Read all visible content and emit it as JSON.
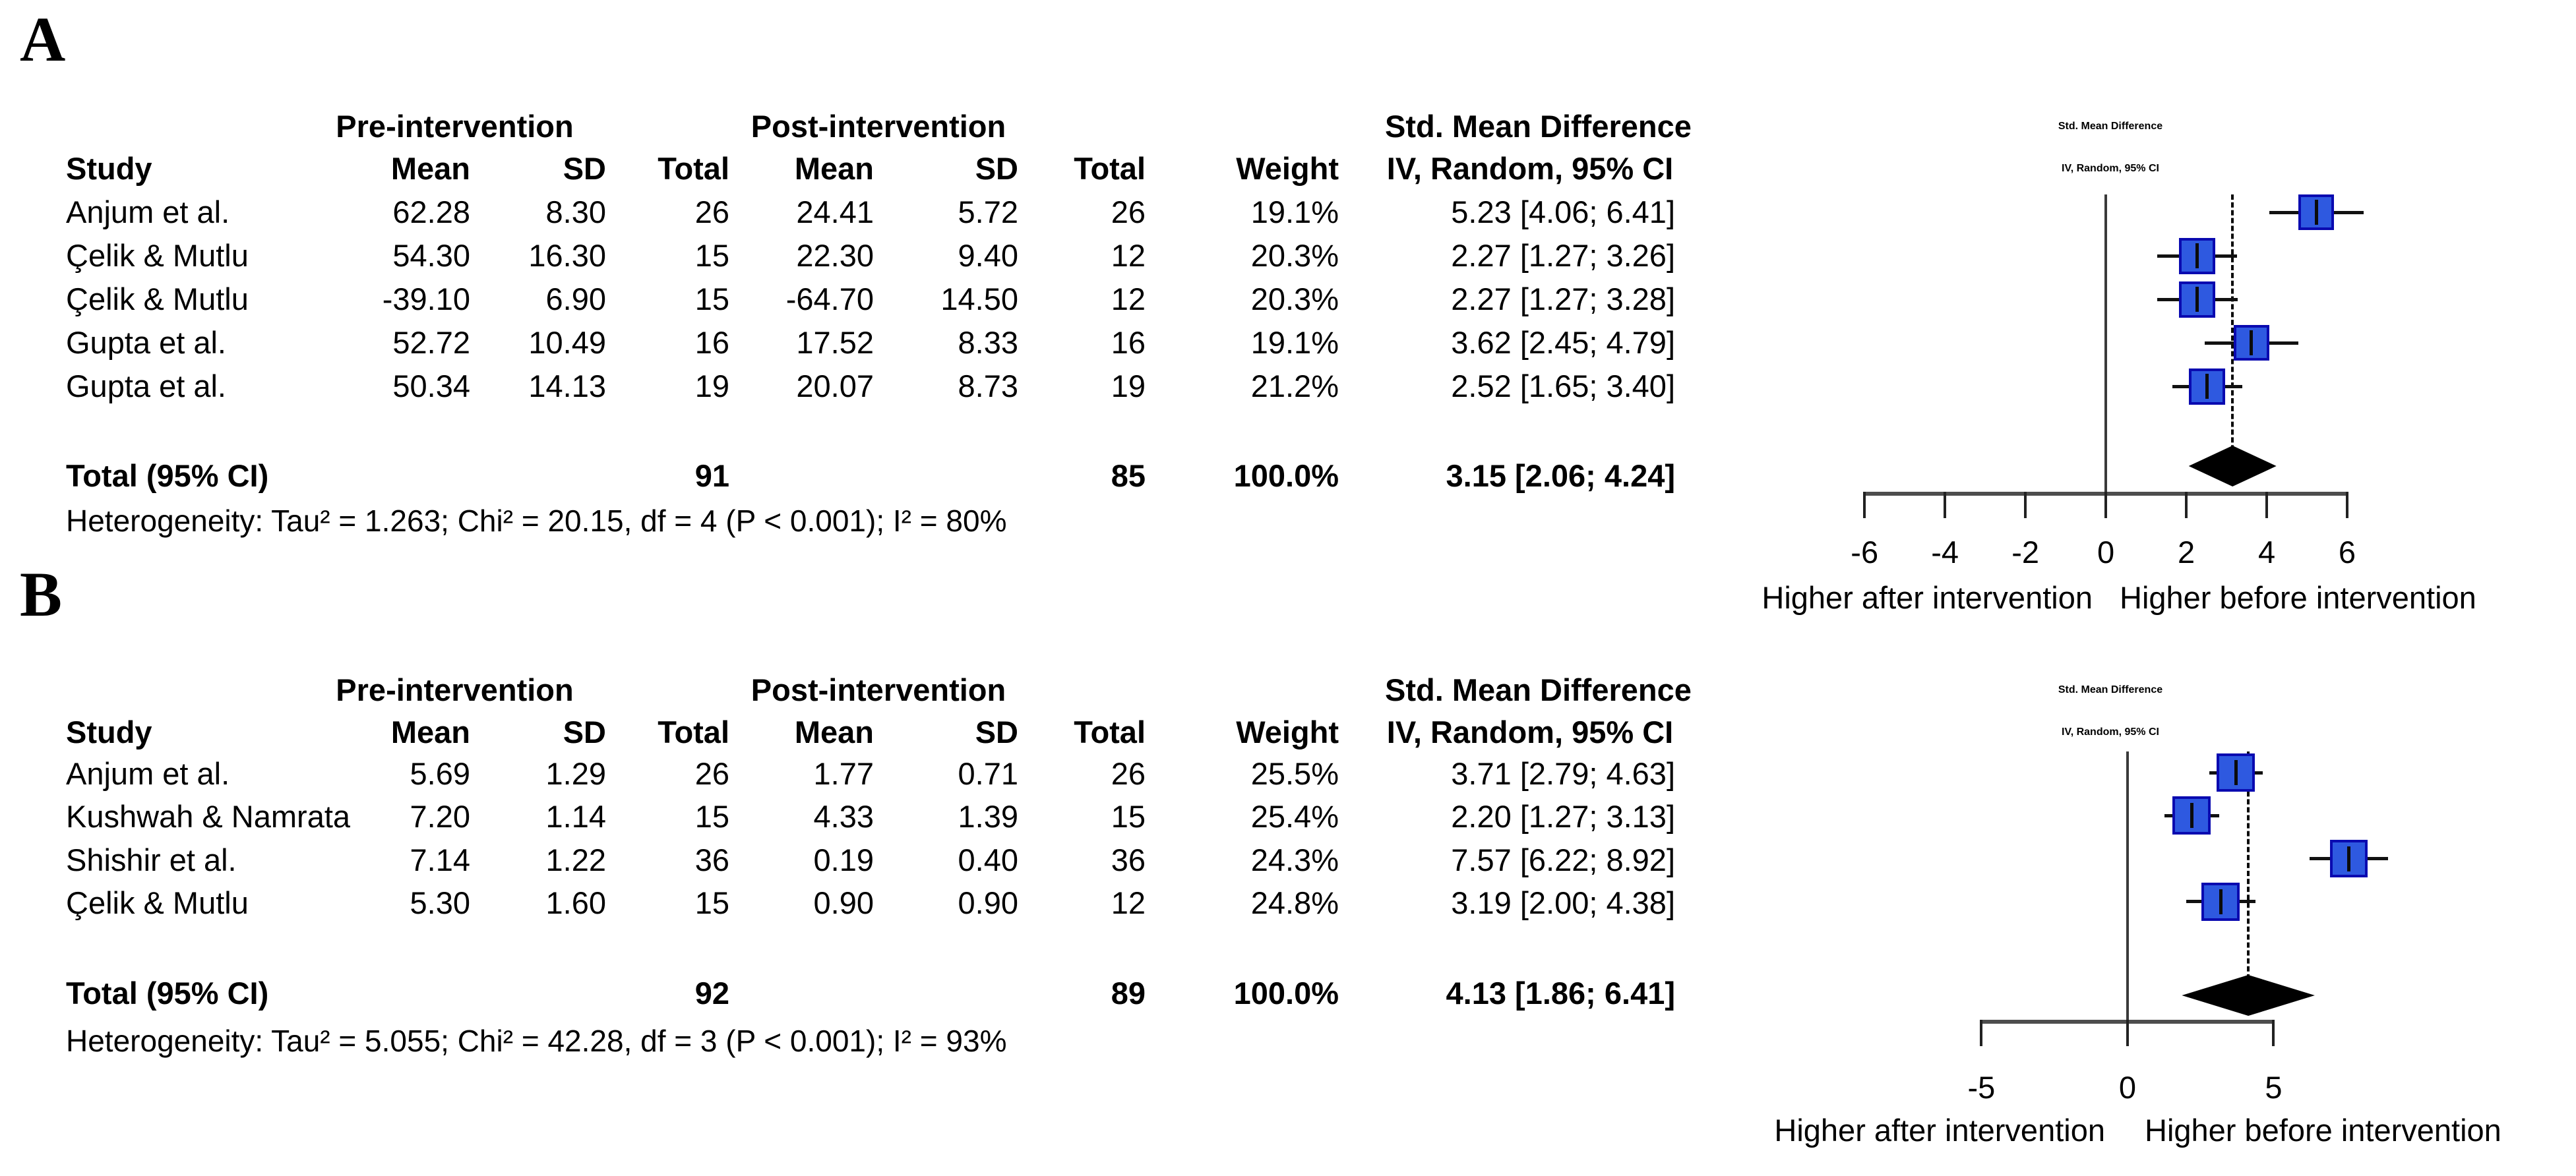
{
  "panels": [
    {
      "label": "A",
      "table": {
        "group_pre": "Pre-intervention",
        "group_post": "Post-intervention",
        "smd_header1": "Std. Mean Difference",
        "smd_header2": "IV, Random, 95% CI",
        "col_study": "Study",
        "col_mean": "Mean",
        "col_sd": "SD",
        "col_total": "Total",
        "col_weight": "Weight",
        "rows": [
          {
            "study": "Anjum et al.",
            "pre_mean": "62.28",
            "pre_sd": "8.30",
            "pre_total": "26",
            "post_mean": "24.41",
            "post_sd": "5.72",
            "post_total": "26",
            "weight": "19.1%",
            "smd": "5.23 [4.06; 6.41]"
          },
          {
            "study": "Çelik & Mutlu",
            "pre_mean": "54.30",
            "pre_sd": "16.30",
            "pre_total": "15",
            "post_mean": "22.30",
            "post_sd": "9.40",
            "post_total": "12",
            "weight": "20.3%",
            "smd": "2.27 [1.27; 3.26]"
          },
          {
            "study": "Çelik & Mutlu",
            "pre_mean": "-39.10",
            "pre_sd": "6.90",
            "pre_total": "15",
            "post_mean": "-64.70",
            "post_sd": "14.50",
            "post_total": "12",
            "weight": "20.3%",
            "smd": "2.27 [1.27; 3.28]"
          },
          {
            "study": "Gupta et al.",
            "pre_mean": "52.72",
            "pre_sd": "10.49",
            "pre_total": "16",
            "post_mean": "17.52",
            "post_sd": "8.33",
            "post_total": "16",
            "weight": "19.1%",
            "smd": "3.62 [2.45; 4.79]"
          },
          {
            "study": "Gupta et al.",
            "pre_mean": "50.34",
            "pre_sd": "14.13",
            "pre_total": "19",
            "post_mean": "20.07",
            "post_sd": "8.73",
            "post_total": "19",
            "weight": "21.2%",
            "smd": "2.52 [1.65; 3.40]"
          }
        ],
        "total": {
          "label": "Total (95% CI)",
          "pre_total": "91",
          "post_total": "85",
          "weight": "100.0%",
          "smd": "3.15 [2.06; 4.24]"
        },
        "heterogeneity": "Heterogeneity: Tau² = 1.263; Chi² = 20.15, df = 4 (P < 0.001); I² = 80%"
      },
      "plot_header1": "Std. Mean Difference",
      "plot_header2": "IV, Random, 95% CI",
      "note_left": "Higher after intervention",
      "note_right": "Higher before intervention"
    },
    {
      "label": "B",
      "table": {
        "group_pre": "Pre-intervention",
        "group_post": "Post-intervention",
        "smd_header1": "Std. Mean Difference",
        "smd_header2": "IV, Random, 95% CI",
        "col_study": "Study",
        "col_mean": "Mean",
        "col_sd": "SD",
        "col_total": "Total",
        "col_weight": "Weight",
        "rows": [
          {
            "study": "Anjum et al.",
            "pre_mean": "5.69",
            "pre_sd": "1.29",
            "pre_total": "26",
            "post_mean": "1.77",
            "post_sd": "0.71",
            "post_total": "26",
            "weight": "25.5%",
            "smd": "3.71 [2.79; 4.63]"
          },
          {
            "study": "Kushwah & Namrata",
            "pre_mean": "7.20",
            "pre_sd": "1.14",
            "pre_total": "15",
            "post_mean": "4.33",
            "post_sd": "1.39",
            "post_total": "15",
            "weight": "25.4%",
            "smd": "2.20 [1.27; 3.13]"
          },
          {
            "study": "Shishir et al.",
            "pre_mean": "7.14",
            "pre_sd": "1.22",
            "pre_total": "36",
            "post_mean": "0.19",
            "post_sd": "0.40",
            "post_total": "36",
            "weight": "24.3%",
            "smd": "7.57 [6.22; 8.92]"
          },
          {
            "study": "Çelik & Mutlu",
            "pre_mean": "5.30",
            "pre_sd": "1.60",
            "pre_total": "15",
            "post_mean": "0.90",
            "post_sd": "0.90",
            "post_total": "12",
            "weight": "24.8%",
            "smd": "3.19 [2.00; 4.38]"
          }
        ],
        "total": {
          "label": "Total (95% CI)",
          "pre_total": "92",
          "post_total": "89",
          "weight": "100.0%",
          "smd": "4.13 [1.86; 6.41]"
        },
        "heterogeneity": "Heterogeneity: Tau² = 5.055; Chi² = 42.28, df = 3 (P < 0.001); I² = 93%"
      },
      "plot_header1": "Std. Mean Difference",
      "plot_header2": "IV, Random, 95% CI",
      "note_left": "Higher after intervention",
      "note_right": "Higher before intervention"
    }
  ],
  "chart_data": [
    {
      "type": "forest",
      "panel": "A",
      "title": "Std. Mean Difference",
      "model": "IV, Random, 95% CI",
      "studies": [
        {
          "name": "Anjum et al.",
          "smd": 5.23,
          "ci_low": 4.06,
          "ci_high": 6.41,
          "weight_pct": 19.1
        },
        {
          "name": "Çelik & Mutlu",
          "smd": 2.27,
          "ci_low": 1.27,
          "ci_high": 3.26,
          "weight_pct": 20.3
        },
        {
          "name": "Çelik & Mutlu",
          "smd": 2.27,
          "ci_low": 1.27,
          "ci_high": 3.28,
          "weight_pct": 20.3
        },
        {
          "name": "Gupta et al.",
          "smd": 3.62,
          "ci_low": 2.45,
          "ci_high": 4.79,
          "weight_pct": 19.1
        },
        {
          "name": "Gupta et al.",
          "smd": 2.52,
          "ci_low": 1.65,
          "ci_high": 3.4,
          "weight_pct": 21.2
        }
      ],
      "total": {
        "smd": 3.15,
        "ci_low": 2.06,
        "ci_high": 4.24
      },
      "ticks": [
        -6,
        -4,
        -2,
        0,
        2,
        4,
        6
      ],
      "xlim": [
        -6.61,
        11.69
      ],
      "zero_reference": 0,
      "note_left": "Higher after intervention",
      "note_right": "Higher before intervention"
    },
    {
      "type": "forest",
      "panel": "B",
      "title": "Std. Mean Difference",
      "model": "IV, Random, 95% CI",
      "studies": [
        {
          "name": "Anjum et al.",
          "smd": 3.71,
          "ci_low": 2.79,
          "ci_high": 4.63,
          "weight_pct": 25.5
        },
        {
          "name": "Kushwah & Namrata",
          "smd": 2.2,
          "ci_low": 1.27,
          "ci_high": 3.13,
          "weight_pct": 25.4
        },
        {
          "name": "Shishir et al.",
          "smd": 7.57,
          "ci_low": 6.22,
          "ci_high": 8.92,
          "weight_pct": 24.3
        },
        {
          "name": "Çelik & Mutlu",
          "smd": 3.19,
          "ci_low": 2.0,
          "ci_high": 4.38,
          "weight_pct": 24.8
        }
      ],
      "total": {
        "smd": 4.13,
        "ci_low": 1.86,
        "ci_high": 6.41
      },
      "ticks": [
        -5,
        0,
        5
      ],
      "xlim": [
        -6.68,
        15.35
      ],
      "zero_reference": 0,
      "note_left": "Higher after intervention",
      "note_right": "Higher before intervention"
    }
  ]
}
